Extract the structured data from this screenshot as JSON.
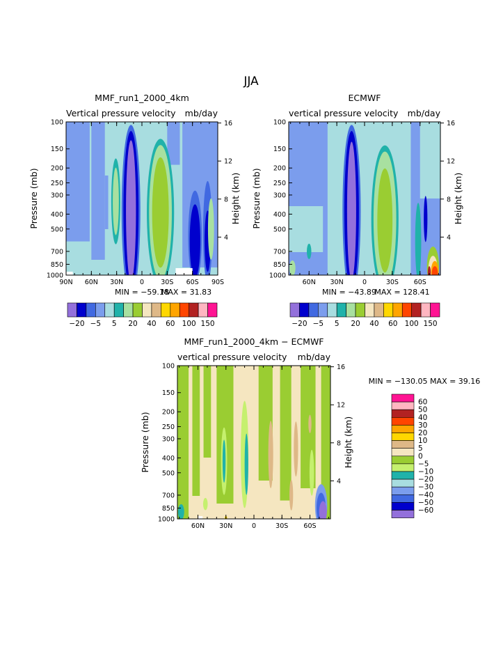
{
  "figure": {
    "title": "JJA"
  },
  "colors": {
    "palette": [
      "#9370db",
      "#0000cd",
      "#4169e1",
      "#7b9ded",
      "#a8dde0",
      "#20b2aa",
      "#a8e0a0",
      "#9acd32",
      "#f5e6c0",
      "#deb887",
      "#ffd700",
      "#ffa500",
      "#ff4500",
      "#b22222",
      "#ffb6c1",
      "#ff1493"
    ],
    "diff_palette": [
      "#9370db",
      "#0000cd",
      "#4169e1",
      "#7b9ded",
      "#a8dde0",
      "#20b2aa",
      "#c5f06e",
      "#9acd32",
      "#f5e6c0",
      "#deb887",
      "#ffd700",
      "#ffa500",
      "#ff4500",
      "#b22222",
      "#ffb6c1",
      "#ff1493"
    ]
  },
  "chart_data": [
    {
      "type": "heatmap",
      "title": "MMF_run1_2000_4km",
      "subtitle_left": "Vertical pressure velocity",
      "subtitle_right": "mb/day",
      "ylabel": "Pressure (mb)",
      "ylabel_right": "Height (km)",
      "x_ticklabels": [
        "90N",
        "60N",
        "30N",
        "0",
        "30S",
        "60S",
        "90S"
      ],
      "y_ticklabels": [
        "100",
        "150",
        "200",
        "250",
        "300",
        "400",
        "500",
        "700",
        "850",
        "1000"
      ],
      "y2_ticklabels": [
        "16",
        "12",
        "8",
        "4"
      ],
      "min_label": "MIN = −59.18",
      "max_label": "MAX = 31.83",
      "colorbar_labels": [
        "−20",
        "−5",
        "5",
        "20",
        "40",
        "60",
        "100",
        "150"
      ],
      "x": [
        90,
        60,
        30,
        0,
        -30,
        -60,
        -90
      ],
      "ylim": [
        1000,
        100
      ],
      "min": -59.18,
      "max": 31.83
    },
    {
      "type": "heatmap",
      "title": "ECMWF",
      "subtitle_left": "vertical pressure velocity",
      "subtitle_right": "mb/day",
      "ylabel": "Pressure (mb)",
      "ylabel_right": "Height (km)",
      "x_ticklabels": [
        "60N",
        "30N",
        "0",
        "30S",
        "60S"
      ],
      "y_ticklabels": [
        "100",
        "150",
        "200",
        "250",
        "300",
        "400",
        "500",
        "700",
        "850",
        "1000"
      ],
      "y2_ticklabels": [
        "16",
        "12",
        "8",
        "4"
      ],
      "min_label": "MIN = −43.89",
      "max_label": "MAX = 128.41",
      "colorbar_labels": [
        "−20",
        "−5",
        "5",
        "20",
        "40",
        "60",
        "100",
        "150"
      ],
      "x": [
        60,
        30,
        0,
        -30,
        -60
      ],
      "ylim": [
        1000,
        100
      ],
      "min": -43.89,
      "max": 128.41
    },
    {
      "type": "heatmap",
      "title": "MMF_run1_2000_4km − ECMWF",
      "subtitle_left": "vertical pressure velocity",
      "subtitle_right": "mb/day",
      "ylabel": "Pressure (mb)",
      "ylabel_right": "Height (km)",
      "x_ticklabels": [
        "60N",
        "30N",
        "0",
        "30S",
        "60S"
      ],
      "y_ticklabels": [
        "100",
        "150",
        "200",
        "250",
        "300",
        "400",
        "500",
        "700",
        "850",
        "1000"
      ],
      "y2_ticklabels": [
        "16",
        "12",
        "8",
        "4"
      ],
      "min_max_label": "MIN = −130.05   MAX = 39.16",
      "colorbar_labels": [
        "60",
        "50",
        "40",
        "30",
        "20",
        "10",
        "5",
        "0",
        "−5",
        "−10",
        "−20",
        "−30",
        "−40",
        "−50",
        "−60"
      ],
      "x": [
        60,
        30,
        0,
        -30,
        -60
      ],
      "ylim": [
        1000,
        100
      ],
      "min": -130.05,
      "max": 39.16
    }
  ]
}
